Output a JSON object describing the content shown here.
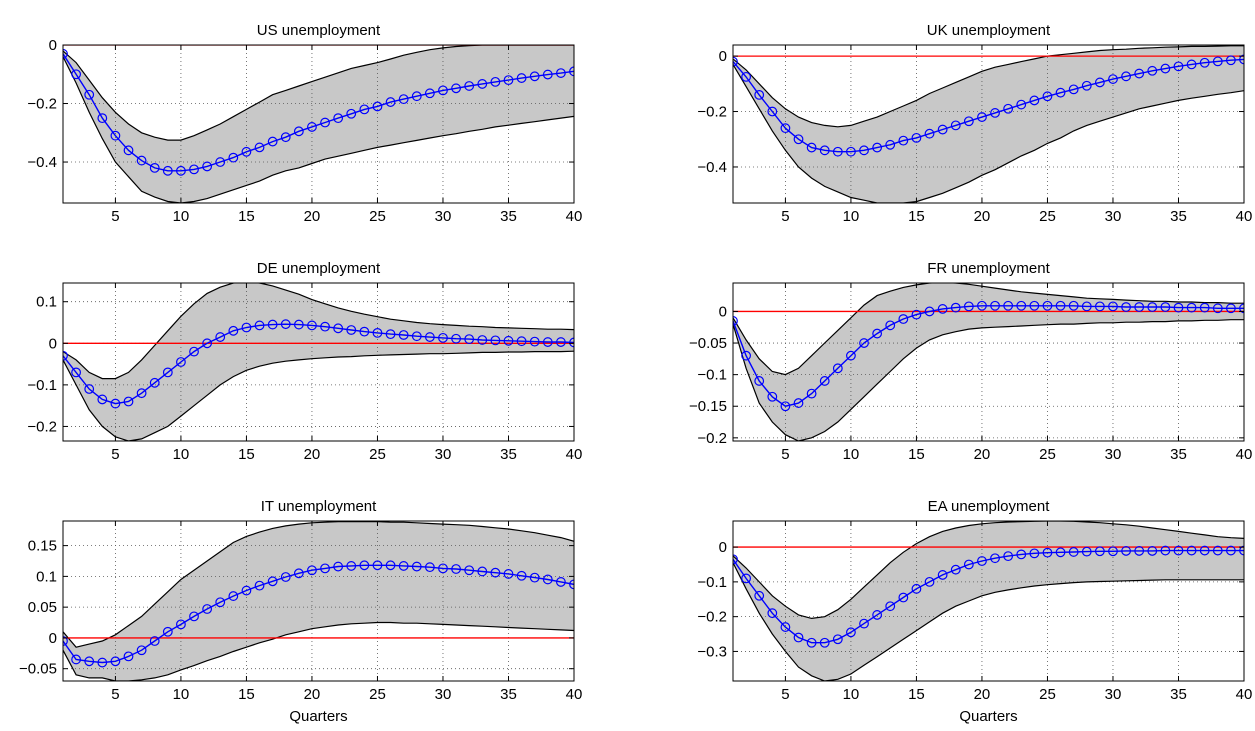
{
  "figure": {
    "x_ticks": [
      5,
      10,
      15,
      20,
      25,
      30,
      35,
      40
    ]
  },
  "chart_data": [
    {
      "type": "line",
      "title": "US unemployment",
      "xlabel": "",
      "ylabel": "",
      "xlim": [
        1,
        40
      ],
      "ylim": [
        -0.54,
        0.0
      ],
      "yticks": [
        0,
        -0.2,
        -0.4
      ],
      "ytick_labels": [
        "0",
        "−0.2",
        "−0.4"
      ],
      "grid": true,
      "zero_line_color": "#ff0000",
      "band_color": "#c8c8c8",
      "median_color": "#0000ff",
      "x": [
        1,
        2,
        3,
        4,
        5,
        6,
        7,
        8,
        9,
        10,
        11,
        12,
        13,
        14,
        15,
        16,
        17,
        18,
        19,
        20,
        21,
        22,
        23,
        24,
        25,
        26,
        27,
        28,
        29,
        30,
        31,
        32,
        33,
        34,
        35,
        36,
        37,
        38,
        39,
        40
      ],
      "median": [
        -0.03,
        -0.1,
        -0.17,
        -0.25,
        -0.31,
        -0.36,
        -0.395,
        -0.42,
        -0.43,
        -0.43,
        -0.425,
        -0.415,
        -0.4,
        -0.385,
        -0.365,
        -0.35,
        -0.33,
        -0.315,
        -0.295,
        -0.28,
        -0.265,
        -0.25,
        -0.235,
        -0.22,
        -0.21,
        -0.195,
        -0.185,
        -0.175,
        -0.165,
        -0.155,
        -0.148,
        -0.14,
        -0.133,
        -0.126,
        -0.12,
        -0.113,
        -0.107,
        -0.101,
        -0.096,
        -0.09
      ],
      "upper": [
        -0.02,
        -0.06,
        -0.12,
        -0.18,
        -0.23,
        -0.27,
        -0.3,
        -0.315,
        -0.325,
        -0.325,
        -0.31,
        -0.29,
        -0.27,
        -0.245,
        -0.22,
        -0.195,
        -0.17,
        -0.155,
        -0.14,
        -0.125,
        -0.11,
        -0.095,
        -0.08,
        -0.07,
        -0.06,
        -0.048,
        -0.035,
        -0.025,
        -0.016,
        -0.01,
        -0.005,
        -0.002,
        0,
        0,
        0,
        0,
        0,
        0,
        0,
        0
      ],
      "lower": [
        -0.04,
        -0.13,
        -0.23,
        -0.32,
        -0.4,
        -0.45,
        -0.5,
        -0.52,
        -0.535,
        -0.54,
        -0.535,
        -0.525,
        -0.51,
        -0.495,
        -0.48,
        -0.465,
        -0.445,
        -0.43,
        -0.42,
        -0.405,
        -0.39,
        -0.38,
        -0.37,
        -0.36,
        -0.35,
        -0.342,
        -0.334,
        -0.326,
        -0.318,
        -0.31,
        -0.303,
        -0.295,
        -0.288,
        -0.28,
        -0.274,
        -0.268,
        -0.262,
        -0.256,
        -0.25,
        -0.244
      ]
    },
    {
      "type": "line",
      "title": "UK unemployment",
      "xlabel": "",
      "ylabel": "",
      "xlim": [
        1,
        40
      ],
      "ylim": [
        -0.53,
        0.04
      ],
      "yticks": [
        0,
        -0.2,
        -0.4
      ],
      "ytick_labels": [
        "0",
        "−0.2",
        "−0.4"
      ],
      "grid": true,
      "zero_line_color": "#ff0000",
      "band_color": "#c8c8c8",
      "median_color": "#0000ff",
      "x": [
        1,
        2,
        3,
        4,
        5,
        6,
        7,
        8,
        9,
        10,
        11,
        12,
        13,
        14,
        15,
        16,
        17,
        18,
        19,
        20,
        21,
        22,
        23,
        24,
        25,
        26,
        27,
        28,
        29,
        30,
        31,
        32,
        33,
        34,
        35,
        36,
        37,
        38,
        39,
        40
      ],
      "median": [
        -0.02,
        -0.075,
        -0.14,
        -0.2,
        -0.26,
        -0.3,
        -0.33,
        -0.34,
        -0.345,
        -0.345,
        -0.34,
        -0.33,
        -0.32,
        -0.305,
        -0.295,
        -0.28,
        -0.265,
        -0.25,
        -0.235,
        -0.22,
        -0.205,
        -0.19,
        -0.175,
        -0.16,
        -0.145,
        -0.132,
        -0.12,
        -0.107,
        -0.095,
        -0.083,
        -0.073,
        -0.063,
        -0.053,
        -0.045,
        -0.037,
        -0.03,
        -0.024,
        -0.019,
        -0.015,
        -0.012
      ],
      "upper": [
        -0.01,
        -0.05,
        -0.1,
        -0.15,
        -0.19,
        -0.22,
        -0.24,
        -0.25,
        -0.255,
        -0.25,
        -0.235,
        -0.22,
        -0.2,
        -0.18,
        -0.16,
        -0.135,
        -0.115,
        -0.095,
        -0.075,
        -0.055,
        -0.04,
        -0.03,
        -0.02,
        -0.01,
        0.0,
        0.005,
        0.01,
        0.015,
        0.02,
        0.023,
        0.025,
        0.028,
        0.03,
        0.032,
        0.033,
        0.035,
        0.035,
        0.036,
        0.037,
        0.037
      ],
      "lower": [
        -0.03,
        -0.11,
        -0.19,
        -0.27,
        -0.34,
        -0.4,
        -0.44,
        -0.47,
        -0.49,
        -0.51,
        -0.52,
        -0.53,
        -0.53,
        -0.53,
        -0.525,
        -0.51,
        -0.495,
        -0.475,
        -0.455,
        -0.43,
        -0.41,
        -0.385,
        -0.36,
        -0.34,
        -0.315,
        -0.295,
        -0.27,
        -0.25,
        -0.235,
        -0.22,
        -0.205,
        -0.19,
        -0.18,
        -0.17,
        -0.16,
        -0.152,
        -0.145,
        -0.138,
        -0.132,
        -0.125
      ]
    },
    {
      "type": "line",
      "title": "DE unemployment",
      "xlabel": "",
      "ylabel": "",
      "xlim": [
        1,
        40
      ],
      "ylim": [
        -0.235,
        0.145
      ],
      "yticks": [
        0.1,
        0,
        -0.1,
        -0.2
      ],
      "ytick_labels": [
        "0.1",
        "0",
        "−0.1",
        "−0.2"
      ],
      "grid": true,
      "zero_line_color": "#ff0000",
      "band_color": "#c8c8c8",
      "median_color": "#0000ff",
      "x": [
        1,
        2,
        3,
        4,
        5,
        6,
        7,
        8,
        9,
        10,
        11,
        12,
        13,
        14,
        15,
        16,
        17,
        18,
        19,
        20,
        21,
        22,
        23,
        24,
        25,
        26,
        27,
        28,
        29,
        30,
        31,
        32,
        33,
        34,
        35,
        36,
        37,
        38,
        39,
        40
      ],
      "median": [
        -0.03,
        -0.07,
        -0.11,
        -0.135,
        -0.145,
        -0.14,
        -0.12,
        -0.095,
        -0.07,
        -0.045,
        -0.02,
        0.0,
        0.015,
        0.03,
        0.038,
        0.043,
        0.045,
        0.046,
        0.045,
        0.043,
        0.04,
        0.036,
        0.032,
        0.028,
        0.025,
        0.022,
        0.02,
        0.017,
        0.015,
        0.013,
        0.011,
        0.01,
        0.008,
        0.007,
        0.006,
        0.005,
        0.004,
        0.003,
        0.003,
        0.002
      ],
      "upper": [
        -0.02,
        -0.04,
        -0.07,
        -0.085,
        -0.085,
        -0.07,
        -0.04,
        -0.005,
        0.03,
        0.065,
        0.095,
        0.12,
        0.135,
        0.145,
        0.148,
        0.145,
        0.138,
        0.128,
        0.118,
        0.105,
        0.095,
        0.085,
        0.077,
        0.07,
        0.064,
        0.058,
        0.054,
        0.05,
        0.047,
        0.045,
        0.043,
        0.041,
        0.04,
        0.038,
        0.037,
        0.036,
        0.035,
        0.034,
        0.034,
        0.033
      ],
      "lower": [
        -0.04,
        -0.1,
        -0.16,
        -0.2,
        -0.225,
        -0.235,
        -0.23,
        -0.215,
        -0.2,
        -0.175,
        -0.15,
        -0.125,
        -0.1,
        -0.08,
        -0.065,
        -0.055,
        -0.048,
        -0.043,
        -0.04,
        -0.037,
        -0.035,
        -0.033,
        -0.032,
        -0.03,
        -0.029,
        -0.028,
        -0.027,
        -0.026,
        -0.025,
        -0.025,
        -0.024,
        -0.023,
        -0.022,
        -0.022,
        -0.021,
        -0.021,
        -0.02,
        -0.02,
        -0.02,
        -0.019
      ]
    },
    {
      "type": "line",
      "title": "FR unemployment",
      "xlabel": "",
      "ylabel": "",
      "xlim": [
        1,
        40
      ],
      "ylim": [
        -0.205,
        0.045
      ],
      "yticks": [
        0,
        -0.05,
        -0.1,
        -0.15,
        -0.2
      ],
      "ytick_labels": [
        "0",
        "−0.05",
        "−0.1",
        "−0.15",
        "−0.2"
      ],
      "grid": true,
      "zero_line_color": "#ff0000",
      "band_color": "#c8c8c8",
      "median_color": "#0000ff",
      "x": [
        1,
        2,
        3,
        4,
        5,
        6,
        7,
        8,
        9,
        10,
        11,
        12,
        13,
        14,
        15,
        16,
        17,
        18,
        19,
        20,
        21,
        22,
        23,
        24,
        25,
        26,
        27,
        28,
        29,
        30,
        31,
        32,
        33,
        34,
        35,
        36,
        37,
        38,
        39,
        40
      ],
      "median": [
        -0.015,
        -0.07,
        -0.11,
        -0.135,
        -0.15,
        -0.145,
        -0.13,
        -0.11,
        -0.09,
        -0.07,
        -0.05,
        -0.035,
        -0.022,
        -0.012,
        -0.005,
        0.0,
        0.004,
        0.006,
        0.008,
        0.009,
        0.009,
        0.009,
        0.009,
        0.009,
        0.009,
        0.009,
        0.009,
        0.008,
        0.008,
        0.008,
        0.007,
        0.007,
        0.007,
        0.007,
        0.006,
        0.006,
        0.006,
        0.005,
        0.005,
        0.005
      ],
      "upper": [
        -0.01,
        -0.045,
        -0.075,
        -0.095,
        -0.1,
        -0.09,
        -0.07,
        -0.05,
        -0.03,
        -0.01,
        0.01,
        0.025,
        0.032,
        0.038,
        0.042,
        0.045,
        0.046,
        0.045,
        0.043,
        0.04,
        0.037,
        0.034,
        0.031,
        0.029,
        0.027,
        0.025,
        0.023,
        0.021,
        0.02,
        0.019,
        0.018,
        0.017,
        0.016,
        0.016,
        0.015,
        0.015,
        0.014,
        0.014,
        0.013,
        0.013
      ],
      "lower": [
        -0.02,
        -0.09,
        -0.145,
        -0.175,
        -0.195,
        -0.205,
        -0.2,
        -0.19,
        -0.175,
        -0.155,
        -0.135,
        -0.115,
        -0.095,
        -0.075,
        -0.058,
        -0.045,
        -0.037,
        -0.032,
        -0.028,
        -0.026,
        -0.025,
        -0.024,
        -0.023,
        -0.022,
        -0.021,
        -0.02,
        -0.02,
        -0.019,
        -0.018,
        -0.018,
        -0.017,
        -0.017,
        -0.016,
        -0.016,
        -0.015,
        -0.015,
        -0.014,
        -0.014,
        -0.013,
        -0.013
      ]
    },
    {
      "type": "line",
      "title": "IT unemployment",
      "xlabel": "Quarters",
      "ylabel": "",
      "xlim": [
        1,
        40
      ],
      "ylim": [
        -0.07,
        0.19
      ],
      "yticks": [
        0.15,
        0.1,
        0.05,
        0,
        -0.05
      ],
      "ytick_labels": [
        "0.15",
        "0.1",
        "0.05",
        "0",
        "−0.05"
      ],
      "grid": true,
      "zero_line_color": "#ff0000",
      "band_color": "#c8c8c8",
      "median_color": "#0000ff",
      "x": [
        1,
        2,
        3,
        4,
        5,
        6,
        7,
        8,
        9,
        10,
        11,
        12,
        13,
        14,
        15,
        16,
        17,
        18,
        19,
        20,
        21,
        22,
        23,
        24,
        25,
        26,
        27,
        28,
        29,
        30,
        31,
        32,
        33,
        34,
        35,
        36,
        37,
        38,
        39,
        40
      ],
      "median": [
        -0.005,
        -0.035,
        -0.038,
        -0.04,
        -0.038,
        -0.03,
        -0.02,
        -0.005,
        0.01,
        0.022,
        0.035,
        0.047,
        0.058,
        0.068,
        0.077,
        0.085,
        0.092,
        0.099,
        0.105,
        0.11,
        0.113,
        0.116,
        0.117,
        0.118,
        0.118,
        0.118,
        0.117,
        0.116,
        0.115,
        0.113,
        0.112,
        0.11,
        0.108,
        0.106,
        0.104,
        0.101,
        0.098,
        0.095,
        0.091,
        0.087
      ],
      "upper": [
        0.01,
        -0.015,
        -0.01,
        -0.005,
        0.005,
        0.02,
        0.035,
        0.055,
        0.075,
        0.095,
        0.11,
        0.125,
        0.14,
        0.155,
        0.165,
        0.172,
        0.178,
        0.182,
        0.185,
        0.187,
        0.188,
        0.189,
        0.189,
        0.189,
        0.189,
        0.188,
        0.188,
        0.187,
        0.186,
        0.185,
        0.184,
        0.183,
        0.181,
        0.179,
        0.177,
        0.174,
        0.171,
        0.167,
        0.163,
        0.157
      ],
      "lower": [
        -0.02,
        -0.06,
        -0.065,
        -0.065,
        -0.07,
        -0.07,
        -0.068,
        -0.065,
        -0.06,
        -0.052,
        -0.045,
        -0.037,
        -0.03,
        -0.022,
        -0.015,
        -0.008,
        -0.002,
        0.005,
        0.01,
        0.015,
        0.018,
        0.021,
        0.023,
        0.024,
        0.025,
        0.025,
        0.024,
        0.024,
        0.023,
        0.022,
        0.021,
        0.02,
        0.019,
        0.018,
        0.017,
        0.016,
        0.015,
        0.014,
        0.013,
        0.012
      ]
    },
    {
      "type": "line",
      "title": "EA unemployment",
      "xlabel": "Quarters",
      "ylabel": "",
      "xlim": [
        1,
        40
      ],
      "ylim": [
        -0.385,
        0.075
      ],
      "yticks": [
        0,
        -0.1,
        -0.2,
        -0.3
      ],
      "ytick_labels": [
        "0",
        "−0.1",
        "−0.2",
        "−0.3"
      ],
      "grid": true,
      "zero_line_color": "#ff0000",
      "band_color": "#c8c8c8",
      "median_color": "#0000ff",
      "x": [
        1,
        2,
        3,
        4,
        5,
        6,
        7,
        8,
        9,
        10,
        11,
        12,
        13,
        14,
        15,
        16,
        17,
        18,
        19,
        20,
        21,
        22,
        23,
        24,
        25,
        26,
        27,
        28,
        29,
        30,
        31,
        32,
        33,
        34,
        35,
        36,
        37,
        38,
        39,
        40
      ],
      "median": [
        -0.035,
        -0.09,
        -0.14,
        -0.19,
        -0.23,
        -0.26,
        -0.275,
        -0.275,
        -0.265,
        -0.245,
        -0.22,
        -0.195,
        -0.17,
        -0.145,
        -0.12,
        -0.1,
        -0.08,
        -0.065,
        -0.05,
        -0.04,
        -0.032,
        -0.026,
        -0.021,
        -0.018,
        -0.016,
        -0.015,
        -0.014,
        -0.013,
        -0.012,
        -0.012,
        -0.011,
        -0.011,
        -0.011,
        -0.01,
        -0.01,
        -0.01,
        -0.01,
        -0.01,
        -0.01,
        -0.01
      ],
      "upper": [
        -0.025,
        -0.06,
        -0.1,
        -0.14,
        -0.17,
        -0.195,
        -0.205,
        -0.2,
        -0.18,
        -0.15,
        -0.115,
        -0.08,
        -0.045,
        -0.015,
        0.01,
        0.03,
        0.045,
        0.055,
        0.062,
        0.067,
        0.07,
        0.072,
        0.073,
        0.074,
        0.075,
        0.075,
        0.074,
        0.072,
        0.07,
        0.067,
        0.064,
        0.06,
        0.055,
        0.05,
        0.045,
        0.04,
        0.035,
        0.03,
        0.027,
        0.025
      ],
      "lower": [
        -0.045,
        -0.12,
        -0.19,
        -0.25,
        -0.3,
        -0.345,
        -0.37,
        -0.385,
        -0.38,
        -0.365,
        -0.34,
        -0.315,
        -0.29,
        -0.265,
        -0.24,
        -0.215,
        -0.19,
        -0.17,
        -0.155,
        -0.14,
        -0.13,
        -0.123,
        -0.117,
        -0.112,
        -0.108,
        -0.105,
        -0.102,
        -0.1,
        -0.099,
        -0.098,
        -0.097,
        -0.096,
        -0.095,
        -0.094,
        -0.094,
        -0.094,
        -0.094,
        -0.094,
        -0.094,
        -0.094
      ]
    }
  ]
}
